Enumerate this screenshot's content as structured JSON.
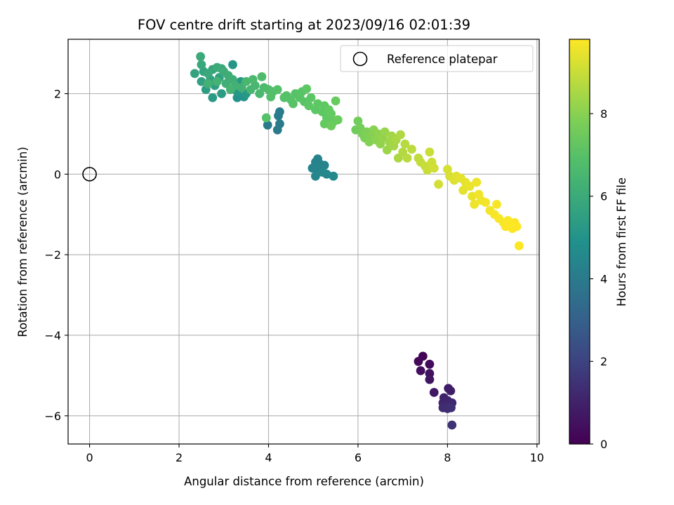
{
  "chart_data": {
    "type": "scatter",
    "title": "FOV centre drift starting at 2023/09/16 02:01:39",
    "xlabel": "Angular distance from reference (arcmin)",
    "ylabel": "Rotation from reference (arcmin)",
    "xlim": [
      -0.48,
      10.05
    ],
    "ylim": [
      -6.7,
      3.35
    ],
    "xticks": [
      0,
      2,
      4,
      6,
      8,
      10
    ],
    "yticks": [
      -6,
      -4,
      -2,
      0,
      2
    ],
    "xtick_labels": [
      "0",
      "2",
      "4",
      "6",
      "8",
      "10"
    ],
    "ytick_labels": [
      "−6",
      "−4",
      "−2",
      "0",
      "2"
    ],
    "grid": true,
    "legend": {
      "placement": "upper right",
      "label": "Reference platepar"
    },
    "reference_point": {
      "x": 0,
      "y": 0,
      "marker": "open circle"
    },
    "colorbar": {
      "label": "Hours from first FF file",
      "range": [
        0,
        9.8
      ],
      "ticks": [
        0,
        2,
        4,
        6,
        8
      ],
      "tick_labels": [
        "0",
        "2",
        "4",
        "6",
        "8"
      ],
      "colormap": "viridis"
    },
    "points": [
      {
        "x": 7.45,
        "y": -4.52,
        "c": 0.1
      },
      {
        "x": 7.35,
        "y": -4.65,
        "c": 0.2
      },
      {
        "x": 7.6,
        "y": -4.72,
        "c": 0.3
      },
      {
        "x": 7.4,
        "y": -4.88,
        "c": 0.4
      },
      {
        "x": 7.6,
        "y": -4.95,
        "c": 0.5
      },
      {
        "x": 7.6,
        "y": -5.1,
        "c": 0.6
      },
      {
        "x": 7.7,
        "y": -5.42,
        "c": 0.7
      },
      {
        "x": 8.02,
        "y": -5.32,
        "c": 0.8
      },
      {
        "x": 8.07,
        "y": -5.38,
        "c": 0.9
      },
      {
        "x": 7.92,
        "y": -5.55,
        "c": 1.0
      },
      {
        "x": 8.0,
        "y": -5.62,
        "c": 1.05
      },
      {
        "x": 7.9,
        "y": -5.68,
        "c": 1.1
      },
      {
        "x": 8.1,
        "y": -5.68,
        "c": 1.15
      },
      {
        "x": 7.95,
        "y": -5.75,
        "c": 1.2
      },
      {
        "x": 8.05,
        "y": -5.75,
        "c": 1.25
      },
      {
        "x": 7.9,
        "y": -5.8,
        "c": 1.3
      },
      {
        "x": 8.0,
        "y": -5.82,
        "c": 1.35
      },
      {
        "x": 8.08,
        "y": -5.8,
        "c": 1.4
      },
      {
        "x": 8.1,
        "y": -6.23,
        "c": 1.5
      },
      {
        "x": 3.98,
        "y": 1.22,
        "c": 4.0
      },
      {
        "x": 4.2,
        "y": 1.1,
        "c": 4.0
      },
      {
        "x": 4.25,
        "y": 1.25,
        "c": 4.05
      },
      {
        "x": 4.22,
        "y": 1.45,
        "c": 4.1
      },
      {
        "x": 4.25,
        "y": 1.55,
        "c": 4.1
      },
      {
        "x": 5.1,
        "y": 0.38,
        "c": 4.3
      },
      {
        "x": 5.05,
        "y": 0.3,
        "c": 4.3
      },
      {
        "x": 5.15,
        "y": 0.25,
        "c": 4.35
      },
      {
        "x": 4.98,
        "y": 0.15,
        "c": 4.4
      },
      {
        "x": 5.25,
        "y": 0.22,
        "c": 4.4
      },
      {
        "x": 5.1,
        "y": 0.1,
        "c": 4.45
      },
      {
        "x": 5.2,
        "y": 0.05,
        "c": 4.5
      },
      {
        "x": 5.05,
        "y": -0.05,
        "c": 4.5
      },
      {
        "x": 5.3,
        "y": 0.0,
        "c": 4.55
      },
      {
        "x": 5.45,
        "y": -0.05,
        "c": 4.6
      },
      {
        "x": 3.3,
        "y": 1.9,
        "c": 5.0
      },
      {
        "x": 3.45,
        "y": 1.92,
        "c": 5.05
      },
      {
        "x": 3.2,
        "y": 2.72,
        "c": 5.1
      },
      {
        "x": 3.3,
        "y": 2.05,
        "c": 5.15
      },
      {
        "x": 3.5,
        "y": 2.0,
        "c": 5.2
      },
      {
        "x": 3.38,
        "y": 2.3,
        "c": 5.2
      },
      {
        "x": 2.75,
        "y": 1.9,
        "c": 5.3
      },
      {
        "x": 2.95,
        "y": 2.0,
        "c": 5.35
      },
      {
        "x": 2.6,
        "y": 2.1,
        "c": 5.4
      },
      {
        "x": 2.8,
        "y": 2.2,
        "c": 5.45
      },
      {
        "x": 2.5,
        "y": 2.3,
        "c": 5.5
      },
      {
        "x": 2.7,
        "y": 2.35,
        "c": 5.55
      },
      {
        "x": 2.9,
        "y": 2.4,
        "c": 5.6
      },
      {
        "x": 2.35,
        "y": 2.5,
        "c": 5.65
      },
      {
        "x": 2.55,
        "y": 2.55,
        "c": 5.7
      },
      {
        "x": 2.75,
        "y": 2.6,
        "c": 5.75
      },
      {
        "x": 2.95,
        "y": 2.62,
        "c": 5.8
      },
      {
        "x": 2.5,
        "y": 2.72,
        "c": 5.85
      },
      {
        "x": 2.65,
        "y": 2.5,
        "c": 5.9
      },
      {
        "x": 2.48,
        "y": 2.92,
        "c": 5.95
      },
      {
        "x": 2.85,
        "y": 2.65,
        "c": 6.0
      },
      {
        "x": 3.0,
        "y": 2.55,
        "c": 6.05
      },
      {
        "x": 3.1,
        "y": 2.45,
        "c": 6.1
      },
      {
        "x": 3.2,
        "y": 2.35,
        "c": 6.15
      },
      {
        "x": 3.05,
        "y": 2.25,
        "c": 6.2
      },
      {
        "x": 3.25,
        "y": 2.2,
        "c": 6.25
      },
      {
        "x": 3.4,
        "y": 2.15,
        "c": 6.3
      },
      {
        "x": 2.65,
        "y": 2.25,
        "c": 6.3
      },
      {
        "x": 2.85,
        "y": 2.3,
        "c": 6.35
      },
      {
        "x": 3.15,
        "y": 2.1,
        "c": 6.4
      },
      {
        "x": 3.6,
        "y": 2.1,
        "c": 6.45
      },
      {
        "x": 3.7,
        "y": 2.2,
        "c": 6.5
      },
      {
        "x": 3.5,
        "y": 2.3,
        "c": 6.55
      },
      {
        "x": 3.8,
        "y": 2.0,
        "c": 6.6
      },
      {
        "x": 3.65,
        "y": 2.35,
        "c": 6.65
      },
      {
        "x": 3.9,
        "y": 2.15,
        "c": 6.7
      },
      {
        "x": 3.85,
        "y": 2.42,
        "c": 6.75
      },
      {
        "x": 4.0,
        "y": 2.1,
        "c": 6.8
      },
      {
        "x": 4.1,
        "y": 2.05,
        "c": 6.85
      },
      {
        "x": 4.05,
        "y": 1.92,
        "c": 6.9
      },
      {
        "x": 4.2,
        "y": 2.1,
        "c": 6.95
      },
      {
        "x": 4.35,
        "y": 1.9,
        "c": 7.0
      },
      {
        "x": 4.4,
        "y": 1.95,
        "c": 7.0
      },
      {
        "x": 4.5,
        "y": 1.85,
        "c": 7.05
      },
      {
        "x": 4.6,
        "y": 2.0,
        "c": 7.05
      },
      {
        "x": 4.7,
        "y": 1.9,
        "c": 7.1
      },
      {
        "x": 4.55,
        "y": 1.75,
        "c": 7.1
      },
      {
        "x": 4.8,
        "y": 1.8,
        "c": 7.15
      },
      {
        "x": 4.75,
        "y": 2.05,
        "c": 7.15
      },
      {
        "x": 4.9,
        "y": 1.7,
        "c": 7.2
      },
      {
        "x": 4.95,
        "y": 1.9,
        "c": 7.2
      },
      {
        "x": 4.85,
        "y": 2.12,
        "c": 7.25
      },
      {
        "x": 5.05,
        "y": 1.6,
        "c": 7.25
      },
      {
        "x": 5.1,
        "y": 1.75,
        "c": 7.3
      },
      {
        "x": 5.2,
        "y": 1.55,
        "c": 7.3
      },
      {
        "x": 5.25,
        "y": 1.7,
        "c": 7.35
      },
      {
        "x": 5.3,
        "y": 1.4,
        "c": 7.35
      },
      {
        "x": 5.35,
        "y": 1.6,
        "c": 7.4
      },
      {
        "x": 5.4,
        "y": 1.5,
        "c": 7.4
      },
      {
        "x": 5.25,
        "y": 1.25,
        "c": 7.45
      },
      {
        "x": 5.45,
        "y": 1.3,
        "c": 7.45
      },
      {
        "x": 5.5,
        "y": 1.82,
        "c": 7.5
      },
      {
        "x": 5.55,
        "y": 1.35,
        "c": 7.5
      },
      {
        "x": 5.4,
        "y": 1.2,
        "c": 7.55
      },
      {
        "x": 3.95,
        "y": 1.4,
        "c": 7.0
      },
      {
        "x": 5.95,
        "y": 1.1,
        "c": 7.6
      },
      {
        "x": 6.0,
        "y": 1.32,
        "c": 7.65
      },
      {
        "x": 6.05,
        "y": 1.15,
        "c": 7.7
      },
      {
        "x": 6.1,
        "y": 1.0,
        "c": 7.75
      },
      {
        "x": 6.15,
        "y": 0.9,
        "c": 7.8
      },
      {
        "x": 6.2,
        "y": 1.05,
        "c": 7.85
      },
      {
        "x": 6.25,
        "y": 0.8,
        "c": 7.9
      },
      {
        "x": 6.3,
        "y": 0.95,
        "c": 7.95
      },
      {
        "x": 6.35,
        "y": 1.1,
        "c": 8.0
      },
      {
        "x": 6.4,
        "y": 0.85,
        "c": 8.05
      },
      {
        "x": 6.45,
        "y": 1.0,
        "c": 8.1
      },
      {
        "x": 6.5,
        "y": 0.75,
        "c": 8.15
      },
      {
        "x": 6.55,
        "y": 0.9,
        "c": 8.2
      },
      {
        "x": 6.6,
        "y": 1.05,
        "c": 8.25
      },
      {
        "x": 6.65,
        "y": 0.6,
        "c": 8.3
      },
      {
        "x": 6.7,
        "y": 0.8,
        "c": 8.35
      },
      {
        "x": 6.75,
        "y": 0.95,
        "c": 8.4
      },
      {
        "x": 6.8,
        "y": 0.7,
        "c": 8.45
      },
      {
        "x": 6.85,
        "y": 0.85,
        "c": 8.5
      },
      {
        "x": 6.9,
        "y": 0.4,
        "c": 8.55
      },
      {
        "x": 6.95,
        "y": 0.98,
        "c": 8.6
      },
      {
        "x": 7.0,
        "y": 0.55,
        "c": 8.65
      },
      {
        "x": 7.05,
        "y": 0.75,
        "c": 8.7
      },
      {
        "x": 7.1,
        "y": 0.4,
        "c": 8.75
      },
      {
        "x": 7.2,
        "y": 0.62,
        "c": 8.8
      },
      {
        "x": 7.35,
        "y": 0.4,
        "c": 8.85
      },
      {
        "x": 7.4,
        "y": 0.3,
        "c": 8.9
      },
      {
        "x": 7.5,
        "y": 0.2,
        "c": 8.95
      },
      {
        "x": 7.55,
        "y": 0.1,
        "c": 9.0
      },
      {
        "x": 7.6,
        "y": 0.55,
        "c": 9.0
      },
      {
        "x": 7.65,
        "y": 0.3,
        "c": 9.05
      },
      {
        "x": 7.7,
        "y": 0.15,
        "c": 9.1
      },
      {
        "x": 7.8,
        "y": -0.25,
        "c": 9.15
      },
      {
        "x": 8.0,
        "y": 0.12,
        "c": 9.2
      },
      {
        "x": 8.05,
        "y": -0.05,
        "c": 9.25
      },
      {
        "x": 8.15,
        "y": -0.15,
        "c": 9.3
      },
      {
        "x": 8.2,
        "y": -0.05,
        "c": 9.35
      },
      {
        "x": 8.3,
        "y": -0.1,
        "c": 9.4
      },
      {
        "x": 8.35,
        "y": -0.4,
        "c": 9.4
      },
      {
        "x": 8.4,
        "y": -0.2,
        "c": 9.45
      },
      {
        "x": 8.5,
        "y": -0.3,
        "c": 9.5
      },
      {
        "x": 8.55,
        "y": -0.55,
        "c": 9.5
      },
      {
        "x": 8.6,
        "y": -0.75,
        "c": 9.55
      },
      {
        "x": 8.65,
        "y": -0.2,
        "c": 9.55
      },
      {
        "x": 8.7,
        "y": -0.5,
        "c": 9.6
      },
      {
        "x": 8.75,
        "y": -0.65,
        "c": 9.6
      },
      {
        "x": 8.85,
        "y": -0.7,
        "c": 9.65
      },
      {
        "x": 8.95,
        "y": -0.9,
        "c": 9.65
      },
      {
        "x": 9.05,
        "y": -1.0,
        "c": 9.7
      },
      {
        "x": 9.1,
        "y": -0.75,
        "c": 9.7
      },
      {
        "x": 9.15,
        "y": -1.1,
        "c": 9.72
      },
      {
        "x": 9.25,
        "y": -1.2,
        "c": 9.74
      },
      {
        "x": 9.3,
        "y": -1.3,
        "c": 9.75
      },
      {
        "x": 9.35,
        "y": -1.15,
        "c": 9.76
      },
      {
        "x": 9.4,
        "y": -1.25,
        "c": 9.77
      },
      {
        "x": 9.45,
        "y": -1.35,
        "c": 9.78
      },
      {
        "x": 9.5,
        "y": -1.2,
        "c": 9.79
      },
      {
        "x": 9.55,
        "y": -1.3,
        "c": 9.8
      },
      {
        "x": 9.6,
        "y": -1.78,
        "c": 9.8
      }
    ]
  }
}
